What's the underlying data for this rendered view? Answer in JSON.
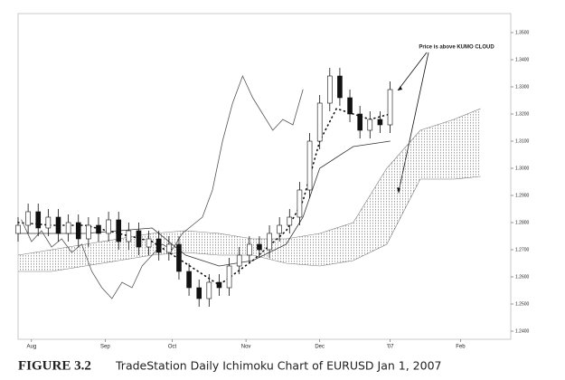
{
  "chart_data": {
    "type": "candlestick",
    "x": [
      0,
      3,
      6,
      9,
      12,
      15,
      18,
      21,
      24,
      27,
      30,
      33,
      36,
      39,
      42,
      45,
      48,
      51,
      54,
      57,
      60,
      63,
      66,
      69,
      72,
      75,
      78,
      81,
      84,
      87,
      90,
      93,
      96,
      99,
      102,
      105,
      108,
      111
    ],
    "open": [
      1.276,
      1.279,
      1.284,
      1.278,
      1.282,
      1.276,
      1.28,
      1.274,
      1.279,
      1.276,
      1.281,
      1.273,
      1.277,
      1.271,
      1.274,
      1.269,
      1.272,
      1.262,
      1.256,
      1.252,
      1.258,
      1.256,
      1.264,
      1.268,
      1.272,
      1.27,
      1.276,
      1.279,
      1.282,
      1.292,
      1.31,
      1.324,
      1.334,
      1.326,
      1.32,
      1.314,
      1.318,
      1.316
    ],
    "high": [
      1.282,
      1.287,
      1.287,
      1.285,
      1.285,
      1.283,
      1.283,
      1.282,
      1.282,
      1.284,
      1.284,
      1.28,
      1.28,
      1.277,
      1.277,
      1.275,
      1.275,
      1.265,
      1.259,
      1.261,
      1.261,
      1.267,
      1.271,
      1.275,
      1.275,
      1.279,
      1.282,
      1.285,
      1.295,
      1.313,
      1.327,
      1.337,
      1.337,
      1.329,
      1.323,
      1.321,
      1.321,
      1.332
    ],
    "low": [
      1.273,
      1.276,
      1.275,
      1.275,
      1.273,
      1.273,
      1.271,
      1.271,
      1.273,
      1.273,
      1.27,
      1.27,
      1.268,
      1.268,
      1.266,
      1.266,
      1.259,
      1.253,
      1.249,
      1.249,
      1.253,
      1.253,
      1.261,
      1.265,
      1.267,
      1.267,
      1.273,
      1.276,
      1.279,
      1.289,
      1.307,
      1.321,
      1.323,
      1.317,
      1.311,
      1.311,
      1.313,
      1.313
    ],
    "close": [
      1.279,
      1.284,
      1.278,
      1.282,
      1.276,
      1.28,
      1.274,
      1.279,
      1.276,
      1.281,
      1.273,
      1.277,
      1.271,
      1.274,
      1.269,
      1.272,
      1.262,
      1.256,
      1.252,
      1.258,
      1.256,
      1.264,
      1.268,
      1.272,
      1.27,
      1.276,
      1.279,
      1.282,
      1.292,
      1.31,
      1.324,
      1.334,
      1.326,
      1.32,
      1.314,
      1.318,
      1.316,
      1.329
    ],
    "up_color": "#ffffff",
    "down_color": "#111111",
    "edge_color": "#111111",
    "lines": [
      {
        "style": "solid",
        "color": "#333333",
        "x": [
          0,
          20,
          40,
          50,
          60,
          70,
          80,
          85,
          90,
          100,
          111
        ],
        "values": [
          1.276,
          1.276,
          1.278,
          1.268,
          1.264,
          1.266,
          1.272,
          1.282,
          1.3,
          1.308,
          1.31
        ]
      },
      {
        "style": "dotted",
        "color": "#111111",
        "x": [
          0,
          10,
          20,
          30,
          40,
          50,
          60,
          70,
          80,
          85,
          90,
          95,
          100,
          105,
          111
        ],
        "values": [
          1.28,
          1.279,
          1.279,
          1.276,
          1.273,
          1.265,
          1.257,
          1.266,
          1.277,
          1.288,
          1.31,
          1.322,
          1.32,
          1.318,
          1.32
        ]
      },
      {
        "style": "solid",
        "color": "#555555",
        "x": [
          1,
          4,
          7,
          10,
          13,
          16,
          19,
          22,
          25,
          28,
          31,
          34,
          37,
          40,
          43,
          46,
          49,
          52,
          55,
          58,
          61,
          64,
          67,
          70,
          73,
          76,
          79,
          82,
          85
        ],
        "values": [
          1.281,
          1.273,
          1.277,
          1.271,
          1.274,
          1.269,
          1.272,
          1.262,
          1.256,
          1.252,
          1.258,
          1.256,
          1.264,
          1.268,
          1.272,
          1.27,
          1.276,
          1.279,
          1.282,
          1.292,
          1.31,
          1.324,
          1.334,
          1.326,
          1.32,
          1.314,
          1.318,
          1.316,
          1.329
        ]
      }
    ],
    "cloud": {
      "color": "#777777",
      "x": [
        0,
        10,
        20,
        30,
        40,
        50,
        60,
        70,
        80,
        90,
        100,
        110,
        120,
        130,
        138
      ],
      "span_a": [
        1.268,
        1.27,
        1.272,
        1.274,
        1.276,
        1.277,
        1.276,
        1.274,
        1.274,
        1.276,
        1.28,
        1.3,
        1.314,
        1.318,
        1.322
      ],
      "span_b": [
        1.262,
        1.262,
        1.264,
        1.266,
        1.268,
        1.269,
        1.268,
        1.268,
        1.265,
        1.264,
        1.266,
        1.272,
        1.296,
        1.296,
        1.297
      ]
    },
    "xlim": [
      0,
      147
    ],
    "xticks": [
      {
        "value": 4,
        "label": "Aug"
      },
      {
        "value": 26,
        "label": "Sep"
      },
      {
        "value": 46,
        "label": "Oct"
      },
      {
        "value": 68,
        "label": "Nov"
      },
      {
        "value": 90,
        "label": "Dec"
      },
      {
        "value": 111,
        "label": "'07"
      },
      {
        "value": 132,
        "label": "Feb"
      }
    ],
    "ylim": [
      1.237,
      1.357
    ],
    "yticks": [
      {
        "value": 1.35,
        "label": "1.3500"
      },
      {
        "value": 1.34,
        "label": "1.3400"
      },
      {
        "value": 1.33,
        "label": "1.3300"
      },
      {
        "value": 1.32,
        "label": "1.3200"
      },
      {
        "value": 1.31,
        "label": "1.3100"
      },
      {
        "value": 1.3,
        "label": "1.3000"
      },
      {
        "value": 1.29,
        "label": "1.2900"
      },
      {
        "value": 1.28,
        "label": "1.2800"
      },
      {
        "value": 1.27,
        "label": "1.2700"
      },
      {
        "value": 1.26,
        "label": "1.2600"
      },
      {
        "value": 1.25,
        "label": "1.2500"
      },
      {
        "value": 1.24,
        "label": "1.2400"
      }
    ],
    "annotation": "Price is above KUMO CLOUD",
    "grid": false
  },
  "caption": {
    "label": "FIGURE 3.2",
    "text": "TradeStation Daily Ichimoku Chart of EURUSD Jan 1, 2007"
  }
}
